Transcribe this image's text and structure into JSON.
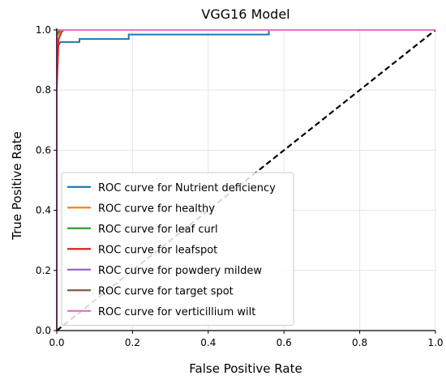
{
  "chart_data": {
    "type": "line",
    "title": "VGG16 Model",
    "xlabel": "False Positive Rate",
    "ylabel": "True Positive Rate",
    "xlim": [
      0.0,
      1.0
    ],
    "ylim": [
      0.0,
      1.0
    ],
    "xticks": [
      "0.0",
      "0.2",
      "0.4",
      "0.6",
      "0.8",
      "1.0"
    ],
    "yticks": [
      "0.0",
      "0.2",
      "0.4",
      "0.6",
      "0.8",
      "1.0"
    ],
    "grid": true,
    "legend_position": "lower-left",
    "series": [
      {
        "name": "ROC curve for Nutrient deficiency",
        "color": "#1f77b4",
        "points": [
          [
            0.0,
            0.0
          ],
          [
            0.0,
            0.94
          ],
          [
            0.005,
            0.95
          ],
          [
            0.01,
            0.96
          ],
          [
            0.06,
            0.96
          ],
          [
            0.06,
            0.97
          ],
          [
            0.19,
            0.97
          ],
          [
            0.19,
            0.985
          ],
          [
            0.56,
            0.985
          ],
          [
            0.56,
            1.0
          ],
          [
            1.0,
            1.0
          ]
        ]
      },
      {
        "name": "ROC curve for healthy",
        "color": "#ff7f0e",
        "points": [
          [
            0.0,
            0.0
          ],
          [
            0.0,
            0.96
          ],
          [
            0.01,
            0.99
          ],
          [
            0.02,
            1.0
          ],
          [
            1.0,
            1.0
          ]
        ]
      },
      {
        "name": "ROC curve for leaf curl",
        "color": "#2ca02c",
        "points": [
          [
            0.0,
            0.0
          ],
          [
            0.0,
            0.98
          ],
          [
            0.01,
            1.0
          ],
          [
            1.0,
            1.0
          ]
        ]
      },
      {
        "name": "ROC curve for leafspot",
        "color": "#d62728",
        "points": [
          [
            0.0,
            0.0
          ],
          [
            0.0,
            0.8
          ],
          [
            0.005,
            0.97
          ],
          [
            0.015,
            1.0
          ],
          [
            1.0,
            1.0
          ]
        ]
      },
      {
        "name": "ROC curve for powdery mildew",
        "color": "#9467bd",
        "points": [
          [
            0.0,
            0.0
          ],
          [
            0.0,
            1.0
          ],
          [
            1.0,
            1.0
          ]
        ]
      },
      {
        "name": "ROC curve for target spot",
        "color": "#8c564b",
        "points": [
          [
            0.0,
            0.0
          ],
          [
            0.0,
            0.99
          ],
          [
            0.01,
            1.0
          ],
          [
            1.0,
            1.0
          ]
        ]
      },
      {
        "name": "ROC curve for verticillium wilt",
        "color": "#e377c2",
        "points": [
          [
            0.0,
            0.0
          ],
          [
            0.0,
            1.0
          ],
          [
            1.0,
            1.0
          ]
        ]
      }
    ],
    "reference_line": {
      "style": "dashed",
      "color": "#000000",
      "points": [
        [
          0.0,
          0.0
        ],
        [
          1.0,
          1.0
        ]
      ]
    }
  }
}
